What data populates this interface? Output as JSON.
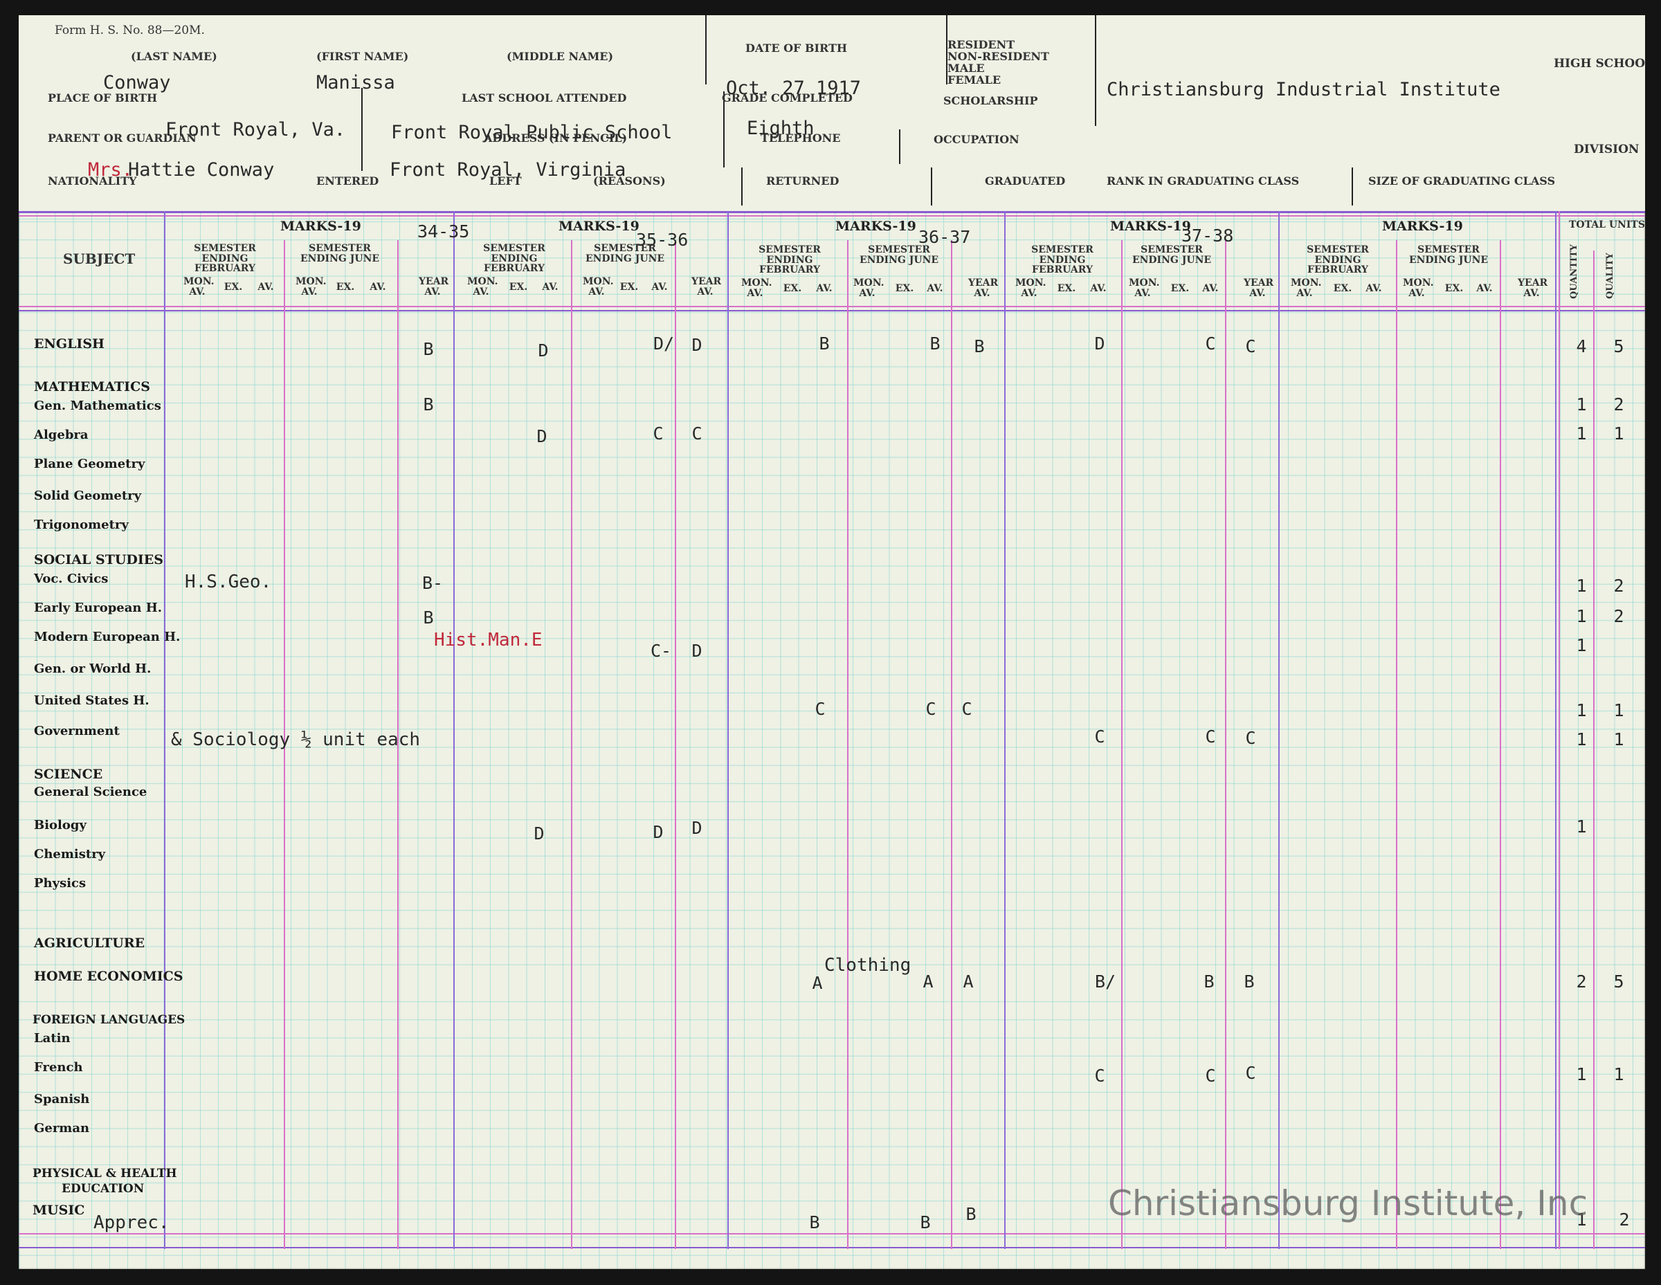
{
  "form": {
    "form_number": "Form H. S. No. 88—20M.",
    "labels": {
      "last_name": "(LAST NAME)",
      "first_name": "(FIRST NAME)",
      "middle_name": "(MIDDLE NAME)",
      "date_of_birth": "DATE OF BIRTH",
      "resident": "RESIDENT",
      "non_resident": "NON-RESIDENT",
      "male": "MALE",
      "female": "FEMALE",
      "high_school": "HIGH SCHOOL",
      "place_of_birth": "PLACE OF BIRTH",
      "last_school_attended": "LAST SCHOOL ATTENDED",
      "grade_completed": "GRADE COMPLETED",
      "scholarship": "SCHOLARSHIP",
      "parent_or_guardian": "PARENT OR GUARDIAN",
      "address": "ADDRESS (IN PENCIL)",
      "telephone": "TELEPHONE",
      "occupation": "OCCUPATION",
      "division": "DIVISION",
      "nationality": "NATIONALITY",
      "entered": "ENTERED",
      "left": "LEFT",
      "reasons": "(REASONS)",
      "returned": "RETURNED",
      "graduated": "GRADUATED",
      "rank_in_graduating_class": "RANK IN GRADUATING CLASS",
      "size_of_graduating_class": "SIZE OF GRADUATING CLASS"
    },
    "values": {
      "last_name": "Conway",
      "first_name": "Manissa",
      "date_of_birth": "Oct. 27 1917",
      "high_school": "Christiansburg Industrial Institute",
      "place_of_birth": "Front Royal, Va.",
      "last_school_attended": "Front Royal Public School",
      "grade_completed": "Eighth",
      "parent_prefix": "Mrs.",
      "parent_or_guardian": "Hattie Conway",
      "address": "Front Royal, Virginia"
    }
  },
  "grid": {
    "subject_header": "SUBJECT",
    "marks_label": "MARKS-19",
    "semester_feb": "SEMESTER ENDING FEBRUARY",
    "semester_june": "SEMESTER ENDING JUNE",
    "col_mon": "MON. AV.",
    "col_ex": "EX.",
    "col_av": "AV.",
    "col_year": "YEAR AV.",
    "total_units": "TOTAL UNITS",
    "quantity": "QUANTITY",
    "quality": "QUALITY",
    "years": [
      "34-35",
      "35-36",
      "36-37",
      "37-38",
      ""
    ]
  },
  "subjects": {
    "english": "ENGLISH",
    "mathematics": "MATHEMATICS",
    "gen_math": "Gen. Mathematics",
    "algebra": "Algebra",
    "plane_geometry": "Plane Geometry",
    "solid_geometry": "Solid Geometry",
    "trigonometry": "Trigonometry",
    "social_studies": "SOCIAL STUDIES",
    "voc_civics": "Voc. Civics",
    "early_european": "Early European H.",
    "modern_european": "Modern European H.",
    "gen_world": "Gen. or World H.",
    "united_states": "United States H.",
    "government": "Government",
    "science": "SCIENCE",
    "general_science": "General Science",
    "biology": "Biology",
    "chemistry": "Chemistry",
    "physics": "Physics",
    "agriculture": "AGRICULTURE",
    "home_economics": "HOME ECONOMICS",
    "foreign_languages": "FOREIGN LANGUAGES",
    "latin": "Latin",
    "french": "French",
    "spanish": "Spanish",
    "german": "German",
    "physical_health": "PHYSICAL & HEALTH",
    "education": "EDUCATION",
    "music": "MUSIC"
  },
  "notes": {
    "hs_geo": "H.S.Geo.",
    "hist_man": "Hist.Man.E",
    "sociology": "& Sociology ½ unit each",
    "clothing": "Clothing",
    "apprec": "Apprec."
  },
  "grades": {
    "english": [
      "B",
      "D",
      "D/",
      "D",
      "B",
      "B",
      "B",
      "D",
      "C",
      "C"
    ],
    "gen_math": [
      "B"
    ],
    "algebra": [
      "D",
      "C",
      "C"
    ],
    "voc_civics": [
      "B-"
    ],
    "early_european": [
      "B"
    ],
    "modern_european": [
      "C-",
      "D"
    ],
    "united_states": [
      "C",
      "C",
      "C"
    ],
    "government": [
      "C",
      "C",
      "C"
    ],
    "biology": [
      "D",
      "D",
      "D"
    ],
    "home_economics": [
      "A",
      "A",
      "A",
      "B/",
      "B",
      "B"
    ],
    "french": [
      "C",
      "C",
      "C"
    ],
    "music": [
      "B",
      "B",
      "B"
    ]
  },
  "totals": {
    "english": [
      "4",
      "5"
    ],
    "gen_math": [
      "1",
      "2"
    ],
    "algebra": [
      "1",
      "1"
    ],
    "voc_civics": [
      "1",
      "2"
    ],
    "early_european": [
      "1",
      "2"
    ],
    "modern_european": [
      "1",
      ""
    ],
    "united_states": [
      "1",
      "1"
    ],
    "government": [
      "1",
      "1"
    ],
    "biology": [
      "1",
      ""
    ],
    "home_economics": [
      "2",
      "5"
    ],
    "french": [
      "1",
      "1"
    ],
    "music": [
      "1",
      "2"
    ]
  },
  "watermark": "Christiansburg Institute, Inc"
}
